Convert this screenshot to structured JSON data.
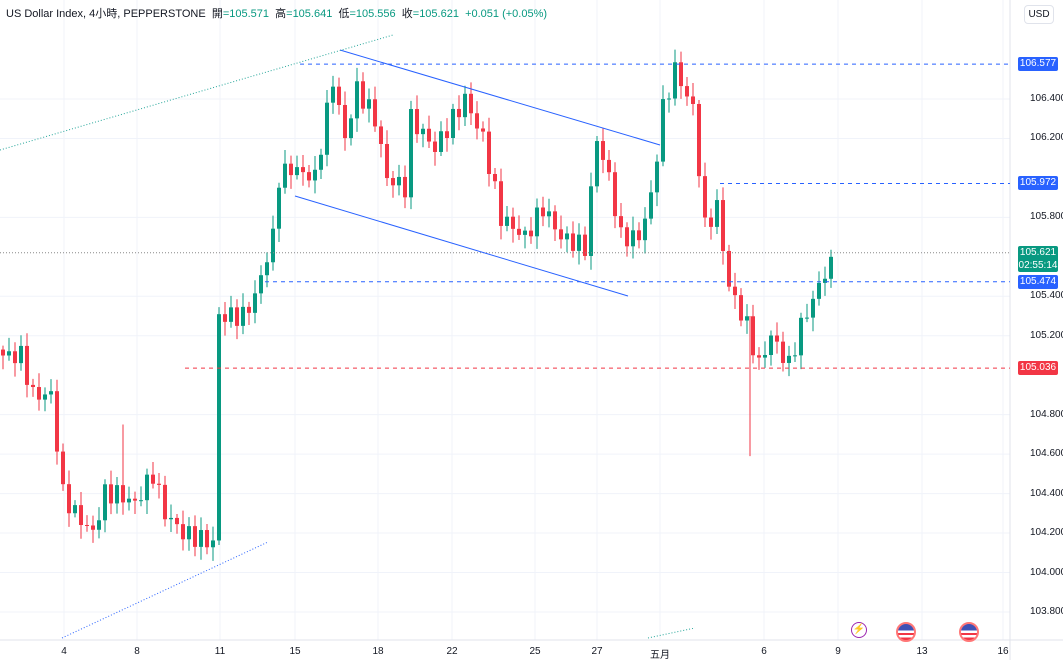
{
  "header": {
    "symbol": "US Dollar Index, 4小時, PEPPERSTONE",
    "open_label": "開",
    "open": "=105.571",
    "high_label": "高",
    "high": "=105.641",
    "low_label": "低",
    "low": "=105.556",
    "close_label": "收",
    "close": "=105.621",
    "change": "+0.051 (+0.05%)"
  },
  "currency": "USD",
  "price_axis": [
    "106.400",
    "106.200",
    "105.800",
    "105.400",
    "105.200",
    "104.800",
    "104.600",
    "104.400",
    "104.200",
    "104.000",
    "103.800"
  ],
  "price_values": [
    106.4,
    106.2,
    105.8,
    105.4,
    105.2,
    104.8,
    104.6,
    104.4,
    104.2,
    104.0,
    103.8
  ],
  "levels": [
    {
      "label": "106.577",
      "price": 106.577,
      "color": "#2962ff"
    },
    {
      "label": "105.972",
      "price": 105.972,
      "color": "#2962ff"
    },
    {
      "label": "105.474",
      "price": 105.474,
      "color": "#2962ff"
    },
    {
      "label": "105.036",
      "price": 105.036,
      "color": "#f23645"
    }
  ],
  "current": {
    "price_label": "105.621",
    "countdown": "02:55:14",
    "price": 105.621,
    "color": "#089981"
  },
  "dates": [
    "4",
    "8",
    "11",
    "15",
    "18",
    "22",
    "25",
    "27",
    "五月",
    "6",
    "9",
    "13",
    "16"
  ],
  "colors": {
    "up": "#089981",
    "down": "#f23645",
    "line": "#2962ff",
    "trend": "#26a69a"
  },
  "price_keypoints": [
    [
      0,
      105.1
    ],
    [
      3,
      105.1
    ],
    [
      5,
      104.9
    ],
    [
      8,
      104.9
    ],
    [
      10,
      104.4
    ],
    [
      12,
      104.3
    ],
    [
      15,
      104.2
    ],
    [
      17,
      104.4
    ],
    [
      19,
      104.4
    ],
    [
      22,
      104.35
    ],
    [
      25,
      104.5
    ],
    [
      27,
      104.3
    ],
    [
      30,
      104.2
    ],
    [
      35,
      104.15
    ],
    [
      36,
      105.3
    ],
    [
      40,
      105.3
    ],
    [
      42,
      105.4
    ],
    [
      45,
      105.7
    ],
    [
      46,
      106.0
    ],
    [
      48,
      106.05
    ],
    [
      52,
      106.0
    ],
    [
      55,
      106.5
    ],
    [
      57,
      106.2
    ],
    [
      59,
      106.45
    ],
    [
      62,
      106.3
    ],
    [
      64,
      106.0
    ],
    [
      67,
      105.95
    ],
    [
      68,
      106.3
    ],
    [
      72,
      106.15
    ],
    [
      77,
      106.4
    ],
    [
      80,
      106.2
    ],
    [
      83,
      105.8
    ],
    [
      87,
      105.7
    ],
    [
      90,
      105.85
    ],
    [
      93,
      105.7
    ],
    [
      97,
      105.65
    ],
    [
      99,
      106.2
    ],
    [
      101,
      106.0
    ],
    [
      103,
      105.7
    ],
    [
      106,
      105.7
    ],
    [
      108,
      105.9
    ],
    [
      110,
      106.35
    ],
    [
      112,
      106.55
    ],
    [
      115,
      106.35
    ],
    [
      117,
      105.75
    ],
    [
      119,
      105.85
    ],
    [
      121,
      105.45
    ],
    [
      124,
      105.25
    ],
    [
      126,
      105.05
    ],
    [
      128,
      105.2
    ],
    [
      131,
      105.05
    ],
    [
      133,
      105.25
    ],
    [
      136,
      105.45
    ],
    [
      138,
      105.6
    ]
  ]
}
